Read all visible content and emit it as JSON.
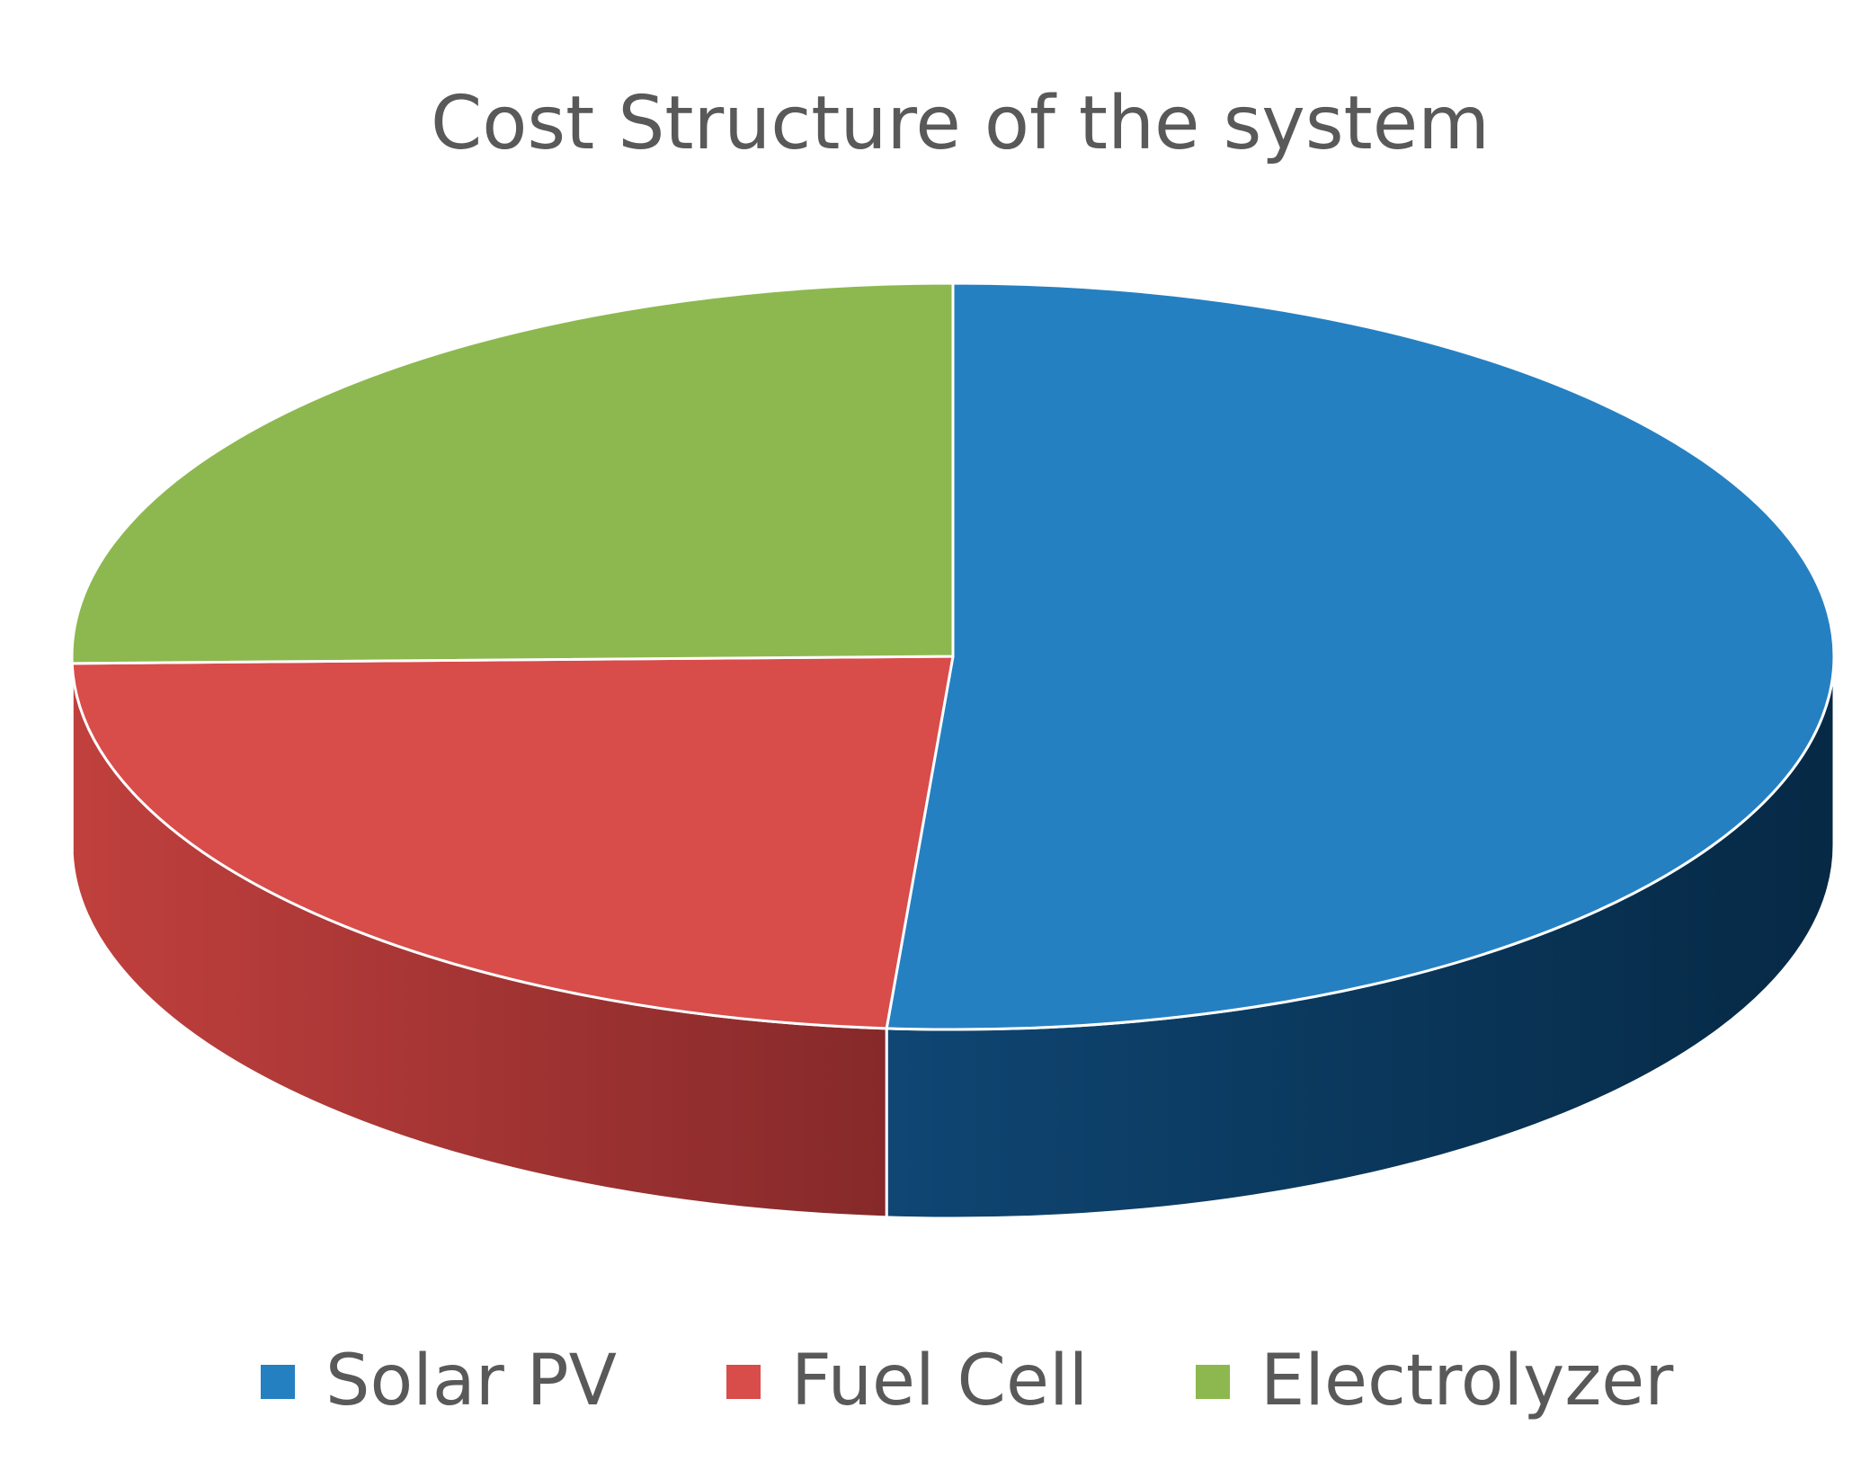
{
  "chart_data": {
    "type": "pie",
    "style": "3d",
    "title": "Cost Structure of the system",
    "categories": [
      "Solar PV",
      "Fuel Cell",
      "Electrolyzer"
    ],
    "values": [
      51.2,
      23.5,
      25.3
    ],
    "unit": "percent",
    "colors": [
      "#2580C2",
      "#D84C4A",
      "#8DB84F"
    ],
    "side_colors": [
      "#0B3A60",
      "#A53433",
      "#5E7F33"
    ],
    "legend": {
      "position": "bottom"
    }
  }
}
